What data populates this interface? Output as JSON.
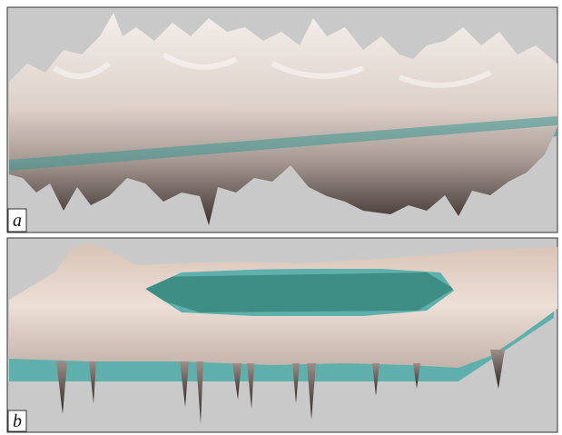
{
  "panels": [
    {
      "label": "a"
    },
    {
      "label": "b"
    }
  ]
}
